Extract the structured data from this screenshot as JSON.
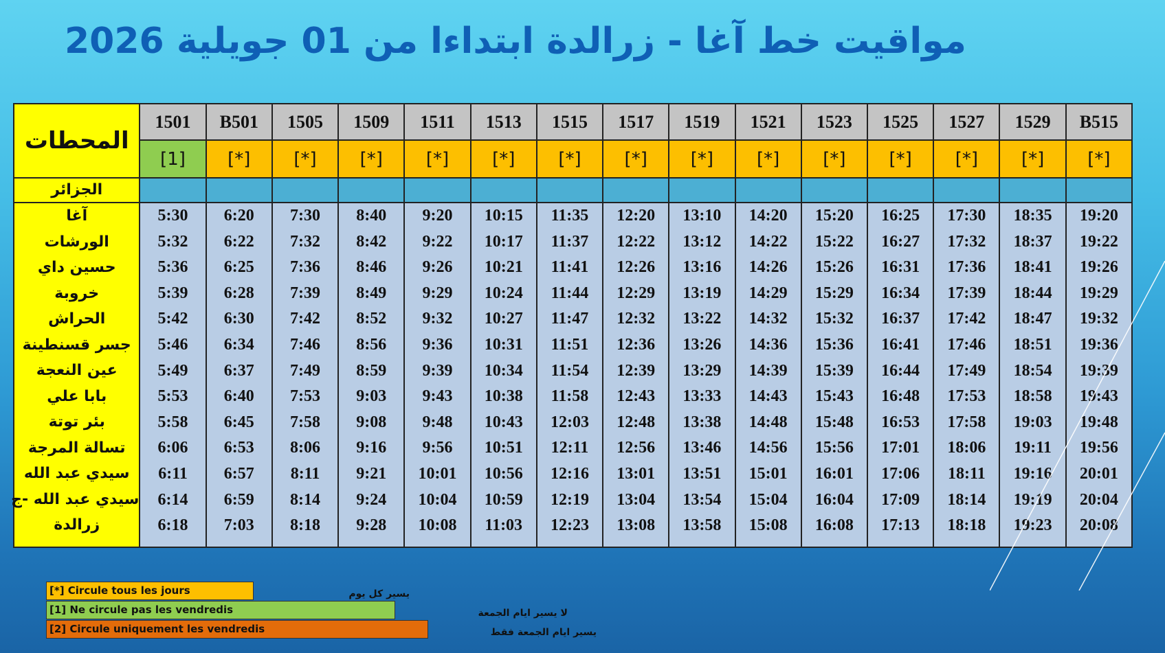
{
  "title": "مواقيت خط آغا - زرالدة  ابتداءا من 01 جويلية 2026",
  "stations_header": "المحطات",
  "trains": [
    {
      "number": "1501",
      "note": "[1]",
      "note_color": "#8fcd50",
      "times": [
        "5:30",
        "5:32",
        "5:36",
        "5:39",
        "5:42",
        "5:46",
        "5:49",
        "5:53",
        "5:58",
        "6:06",
        "6:11",
        "6:14",
        "6:18"
      ]
    },
    {
      "number": "B501",
      "note": "[*]",
      "note_color": "#fdbf00",
      "times": [
        "6:20",
        "6:22",
        "6:25",
        "6:28",
        "6:30",
        "6:34",
        "6:37",
        "6:40",
        "6:45",
        "6:53",
        "6:57",
        "6:59",
        "7:03"
      ]
    },
    {
      "number": "1505",
      "note": "[*]",
      "note_color": "#fdbf00",
      "times": [
        "7:30",
        "7:32",
        "7:36",
        "7:39",
        "7:42",
        "7:46",
        "7:49",
        "7:53",
        "7:58",
        "8:06",
        "8:11",
        "8:14",
        "8:18"
      ]
    },
    {
      "number": "1509",
      "note": "[*]",
      "note_color": "#fdbf00",
      "times": [
        "8:40",
        "8:42",
        "8:46",
        "8:49",
        "8:52",
        "8:56",
        "8:59",
        "9:03",
        "9:08",
        "9:16",
        "9:21",
        "9:24",
        "9:28"
      ]
    },
    {
      "number": "1511",
      "note": "[*]",
      "note_color": "#fdbf00",
      "times": [
        "9:20",
        "9:22",
        "9:26",
        "9:29",
        "9:32",
        "9:36",
        "9:39",
        "9:43",
        "9:48",
        "9:56",
        "10:01",
        "10:04",
        "10:08"
      ]
    },
    {
      "number": "1513",
      "note": "[*]",
      "note_color": "#fdbf00",
      "times": [
        "10:15",
        "10:17",
        "10:21",
        "10:24",
        "10:27",
        "10:31",
        "10:34",
        "10:38",
        "10:43",
        "10:51",
        "10:56",
        "10:59",
        "11:03"
      ]
    },
    {
      "number": "1515",
      "note": "[*]",
      "note_color": "#fdbf00",
      "times": [
        "11:35",
        "11:37",
        "11:41",
        "11:44",
        "11:47",
        "11:51",
        "11:54",
        "11:58",
        "12:03",
        "12:11",
        "12:16",
        "12:19",
        "12:23"
      ]
    },
    {
      "number": "1517",
      "note": "[*]",
      "note_color": "#fdbf00",
      "times": [
        "12:20",
        "12:22",
        "12:26",
        "12:29",
        "12:32",
        "12:36",
        "12:39",
        "12:43",
        "12:48",
        "12:56",
        "13:01",
        "13:04",
        "13:08"
      ]
    },
    {
      "number": "1519",
      "note": "[*]",
      "note_color": "#fdbf00",
      "times": [
        "13:10",
        "13:12",
        "13:16",
        "13:19",
        "13:22",
        "13:26",
        "13:29",
        "13:33",
        "13:38",
        "13:46",
        "13:51",
        "13:54",
        "13:58"
      ]
    },
    {
      "number": "1521",
      "note": "[*]",
      "note_color": "#fdbf00",
      "times": [
        "14:20",
        "14:22",
        "14:26",
        "14:29",
        "14:32",
        "14:36",
        "14:39",
        "14:43",
        "14:48",
        "14:56",
        "15:01",
        "15:04",
        "15:08"
      ]
    },
    {
      "number": "1523",
      "note": "[*]",
      "note_color": "#fdbf00",
      "times": [
        "15:20",
        "15:22",
        "15:26",
        "15:29",
        "15:32",
        "15:36",
        "15:39",
        "15:43",
        "15:48",
        "15:56",
        "16:01",
        "16:04",
        "16:08"
      ]
    },
    {
      "number": "1525",
      "note": "[*]",
      "note_color": "#fdbf00",
      "times": [
        "16:25",
        "16:27",
        "16:31",
        "16:34",
        "16:37",
        "16:41",
        "16:44",
        "16:48",
        "16:53",
        "17:01",
        "17:06",
        "17:09",
        "17:13"
      ]
    },
    {
      "number": "1527",
      "note": "[*]",
      "note_color": "#fdbf00",
      "times": [
        "17:30",
        "17:32",
        "17:36",
        "17:39",
        "17:42",
        "17:46",
        "17:49",
        "17:53",
        "17:58",
        "18:06",
        "18:11",
        "18:14",
        "18:18"
      ]
    },
    {
      "number": "1529",
      "note": "[*]",
      "note_color": "#fdbf00",
      "times": [
        "18:35",
        "18:37",
        "18:41",
        "18:44",
        "18:47",
        "18:51",
        "18:54",
        "18:58",
        "19:03",
        "19:11",
        "19:16",
        "19:19",
        "19:23"
      ]
    },
    {
      "number": "B515",
      "note": "[*]",
      "note_color": "#fdbf00",
      "times": [
        "19:20",
        "19:22",
        "19:26",
        "19:29",
        "19:32",
        "19:36",
        "19:39",
        "19:43",
        "19:48",
        "19:56",
        "20:01",
        "20:04",
        "20:08"
      ]
    }
  ],
  "origin_station": "الجزائر",
  "stations": [
    "آغا",
    "الورشات",
    "حسين داي",
    "خروبة",
    "الحراش",
    "جسر قسنطينة",
    "عين النعجة",
    "بابا علي",
    "بئر توتة",
    "تسالة المرجة",
    "سيدي عبد الله",
    "سيدي عبد الله -ج",
    "زرالدة"
  ],
  "legend": [
    {
      "code": "[*]  Circule tous les jours",
      "arabic": "يسير كل يوم",
      "color": "#fdbf00"
    },
    {
      "code": "[1]  Ne circule pas les vendredis",
      "arabic": "لا يسير ايام الجمعة",
      "color": "#8fcd50"
    },
    {
      "code": "[2] Circule uniquement  les vendredis",
      "arabic": "يسير ايام الجمعة  فقط",
      "color": "#e36c0a"
    }
  ]
}
